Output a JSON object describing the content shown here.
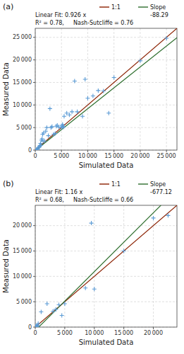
{
  "chart_data": [
    {
      "type": "scatter",
      "title": "(a)",
      "x": [
        200,
        350,
        500,
        700,
        800,
        900,
        1000,
        1100,
        1200,
        1300,
        1400,
        1500,
        1600,
        1800,
        2000,
        2200,
        2500,
        2800,
        3000,
        3200,
        3500,
        3800,
        4000,
        4200,
        4500,
        5000,
        5100,
        5200,
        5300,
        5400,
        5500,
        6000,
        6500,
        7000,
        7500,
        8000,
        9000,
        9500,
        10000,
        11000,
        12000,
        13000,
        14000,
        15000,
        20000,
        25000
      ],
      "values": [
        100,
        200,
        300,
        600,
        800,
        1000,
        1500,
        1100,
        2200,
        2500,
        3500,
        2000,
        3800,
        2000,
        4200,
        5000,
        3200,
        9200,
        5000,
        5200,
        3500,
        3700,
        5300,
        5500,
        5100,
        5000,
        5400,
        5700,
        5200,
        5100,
        7500,
        8200,
        7800,
        8500,
        15300,
        8500,
        7500,
        15700,
        11500,
        12000,
        13200,
        13100,
        8200,
        16100,
        19800,
        24800
      ],
      "color": "#5b9bd5",
      "marker": "+",
      "lines": [
        {
          "name": "1:1",
          "color": "#8B2000",
          "slope": 1,
          "intercept": 0
        },
        {
          "name": "Slope",
          "color": "#2d6e2d",
          "slope": 0.926,
          "intercept": -88.29
        }
      ],
      "annotations": [
        "Linear Fit: 0.926 x",
        "-88.29",
        "R² = 0.78,",
        "Nash-Sutcliffe = 0.76"
      ],
      "xlabel": "Simulated Data",
      "ylabel": "Measured Data",
      "xlim": [
        0,
        27000
      ],
      "ylim": [
        0,
        27000
      ],
      "xticks": [
        0,
        {
          "value": 5000,
          "label": "5 000"
        },
        {
          "value": 10000,
          "label": "10 000"
        },
        {
          "value": 15000,
          "label": "15 000"
        },
        {
          "value": 20000,
          "label": "20 000"
        },
        {
          "value": 25000,
          "label": "25 000"
        }
      ],
      "yticks": [
        0,
        {
          "value": 5000,
          "label": "5 000"
        },
        {
          "value": 10000,
          "label": "10 000"
        },
        {
          "value": 15000,
          "label": "15 000"
        },
        {
          "value": 20000,
          "label": "20 000"
        },
        {
          "value": 25000,
          "label": "25 000"
        }
      ],
      "grid": true
    },
    {
      "type": "scatter",
      "title": "(b)",
      "x": [
        50,
        100,
        150,
        200,
        300,
        400,
        500,
        1000,
        2000,
        3000,
        3500,
        4000,
        4500,
        5000,
        8500,
        9500,
        10000,
        15000,
        20000,
        22500
      ],
      "values": [
        50,
        100,
        150,
        200,
        150,
        300,
        700,
        3000,
        4600,
        3100,
        3500,
        4400,
        2300,
        4600,
        7700,
        20500,
        7500,
        15000,
        21500,
        22000
      ],
      "color": "#5b9bd5",
      "marker": "+",
      "lines": [
        {
          "name": "1:1",
          "color": "#8B2000",
          "slope": 1,
          "intercept": 0
        },
        {
          "name": "Slope",
          "color": "#2d6e2d",
          "slope": 1.16,
          "intercept": -677.12
        }
      ],
      "annotations": [
        "Linear Fit: 1.16 x",
        "-677.12",
        "R² = 0.68,",
        "Nash-Sutcliffe = 0.66"
      ],
      "xlabel": "Simulated Data",
      "ylabel": "Measured Data",
      "xlim": [
        0,
        24000
      ],
      "ylim": [
        0,
        24000
      ],
      "xticks": [
        0,
        {
          "value": 5000,
          "label": "5 000"
        },
        {
          "value": 10000,
          "label": "10 000"
        },
        {
          "value": 15000,
          "label": "15 000"
        },
        {
          "value": 20000,
          "label": "20 000"
        }
      ],
      "yticks": [
        0,
        {
          "value": 5000,
          "label": "5 000"
        },
        {
          "value": 10000,
          "label": "10 000"
        },
        {
          "value": 15000,
          "label": "15 000"
        },
        {
          "value": 20000,
          "label": "20 000"
        }
      ],
      "grid": true
    }
  ]
}
